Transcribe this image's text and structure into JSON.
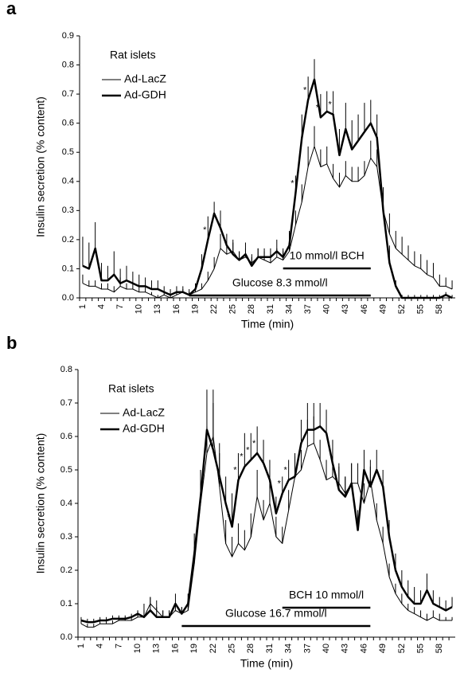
{
  "chart_data": [
    {
      "type": "line",
      "panel_label": "a",
      "subtitle": "Rat islets",
      "x_label": "Time (min)",
      "y_label": "Insulin secretion (% content)",
      "legend": "upper left",
      "categories": [
        "1",
        null,
        null,
        "4",
        null,
        null,
        "7",
        null,
        null,
        "10",
        null,
        null,
        "13",
        null,
        null,
        "16",
        null,
        null,
        "19",
        null,
        null,
        "22",
        null,
        null,
        "25",
        null,
        null,
        "28",
        null,
        null,
        "31",
        null,
        null,
        "34",
        null,
        null,
        "37",
        null,
        null,
        "40",
        null,
        null,
        "43",
        null,
        null,
        "46",
        null,
        null,
        "49",
        null,
        null,
        "52",
        null,
        null,
        "55",
        null,
        null,
        "58",
        null,
        null
      ],
      "series": [
        {
          "name": "Ad-LacZ",
          "color": "#000000",
          "line_width": 1,
          "values": [
            0.05,
            0.04,
            0.04,
            0.03,
            0.03,
            0.02,
            0.04,
            0.03,
            0.03,
            0.02,
            0.02,
            0.01,
            0.0,
            0.01,
            0.0,
            0.01,
            0.02,
            0.01,
            0.02,
            0.03,
            0.06,
            0.1,
            0.17,
            0.15,
            0.16,
            0.13,
            0.14,
            0.12,
            0.14,
            0.13,
            0.12,
            0.14,
            0.13,
            0.16,
            0.25,
            0.33,
            0.45,
            0.52,
            0.45,
            0.46,
            0.41,
            0.38,
            0.42,
            0.4,
            0.4,
            0.42,
            0.48,
            0.45,
            0.3,
            0.22,
            0.17,
            0.15,
            0.13,
            0.11,
            0.1,
            0.08,
            0.07,
            0.04,
            0.04,
            0.03
          ],
          "errors": [
            0.03,
            0.02,
            0.02,
            0.02,
            0.02,
            0.02,
            0.03,
            0.02,
            0.02,
            0.02,
            0.02,
            0.01,
            0.01,
            0.01,
            0.01,
            0.01,
            0.01,
            0.01,
            0.01,
            0.02,
            0.03,
            0.04,
            0.05,
            0.04,
            0.04,
            0.03,
            0.03,
            0.03,
            0.03,
            0.03,
            0.03,
            0.03,
            0.03,
            0.04,
            0.05,
            0.06,
            0.07,
            0.07,
            0.06,
            0.06,
            0.05,
            0.05,
            0.05,
            0.05,
            0.05,
            0.05,
            0.06,
            0.06,
            0.06,
            0.07,
            0.06,
            0.06,
            0.05,
            0.05,
            0.05,
            0.05,
            0.05,
            0.04,
            0.03,
            0.03
          ]
        },
        {
          "name": "Ad-GDH",
          "color": "#000000",
          "line_width": 2.5,
          "values": [
            0.11,
            0.1,
            0.17,
            0.06,
            0.06,
            0.08,
            0.05,
            0.06,
            0.05,
            0.04,
            0.04,
            0.03,
            0.03,
            0.02,
            0.01,
            0.02,
            0.02,
            0.01,
            0.03,
            0.1,
            0.2,
            0.29,
            0.24,
            0.18,
            0.15,
            0.13,
            0.15,
            0.11,
            0.14,
            0.14,
            0.14,
            0.16,
            0.14,
            0.18,
            0.36,
            0.55,
            0.68,
            0.75,
            0.62,
            0.64,
            0.63,
            0.49,
            0.58,
            0.51,
            0.54,
            0.57,
            0.6,
            0.55,
            0.3,
            0.12,
            0.04,
            0.0,
            0.0,
            0.0,
            0.0,
            0.0,
            0.0,
            0.0,
            0.01,
            0.0
          ],
          "errors": [
            0.1,
            0.09,
            0.09,
            0.06,
            0.05,
            0.08,
            0.05,
            0.05,
            0.04,
            0.04,
            0.03,
            0.03,
            0.03,
            0.02,
            0.02,
            0.02,
            0.02,
            0.02,
            0.02,
            0.05,
            0.08,
            0.04,
            0.06,
            0.04,
            0.04,
            0.03,
            0.04,
            0.03,
            0.03,
            0.03,
            0.03,
            0.04,
            0.03,
            0.05,
            0.06,
            0.08,
            0.08,
            0.07,
            0.08,
            0.07,
            0.08,
            0.09,
            0.09,
            0.1,
            0.09,
            0.1,
            0.08,
            0.08,
            0.08,
            0.06,
            0.02,
            0.01,
            0.01,
            0.01,
            0.01,
            0.01,
            0.01,
            0.01,
            0.01,
            0.01
          ]
        }
      ],
      "periods": [
        {
          "label": "10 mmol/l BCH",
          "start": 33,
          "end": 47,
          "level": "upper"
        },
        {
          "label": "Glucose 8.3 mmol/l",
          "start": 18,
          "end": 47,
          "level": "lower"
        }
      ],
      "annotations": [
        {
          "text": "*",
          "x": 21
        },
        {
          "text": "*",
          "x": 35
        },
        {
          "text": "*",
          "x": 37
        },
        {
          "text": "*",
          "x": 39
        },
        {
          "text": "*",
          "x": 41
        }
      ],
      "ylim": [
        0,
        0.9
      ],
      "yticks": [
        {
          "value": 0,
          "label": "0.0"
        },
        0.1,
        0.2,
        0.3,
        0.4,
        0.5,
        0.6,
        0.7,
        0.8,
        0.9
      ]
    },
    {
      "type": "line",
      "panel_label": "b",
      "subtitle": "Rat islets",
      "x_label": "Time (min)",
      "y_label": "Insulin secretion (% content)",
      "legend": "upper left",
      "categories": [
        "1",
        null,
        null,
        "4",
        null,
        null,
        "7",
        null,
        null,
        "10",
        null,
        null,
        "13",
        null,
        null,
        "16",
        null,
        null,
        "19",
        null,
        null,
        "22",
        null,
        null,
        "25",
        null,
        null,
        "28",
        null,
        null,
        "31",
        null,
        null,
        "34",
        null,
        null,
        "37",
        null,
        null,
        "40",
        null,
        null,
        "43",
        null,
        null,
        "46",
        null,
        null,
        "49",
        null,
        null,
        "52",
        null,
        null,
        "55",
        null,
        null,
        "58",
        null,
        null
      ],
      "series": [
        {
          "name": "Ad-LacZ",
          "color": "#000000",
          "line_width": 1,
          "values": [
            0.04,
            0.03,
            0.03,
            0.04,
            0.04,
            0.04,
            0.05,
            0.05,
            0.05,
            0.06,
            0.06,
            0.1,
            0.08,
            0.06,
            0.06,
            0.08,
            0.07,
            0.08,
            0.22,
            0.4,
            0.55,
            0.6,
            0.45,
            0.28,
            0.24,
            0.28,
            0.26,
            0.3,
            0.42,
            0.35,
            0.4,
            0.3,
            0.28,
            0.38,
            0.48,
            0.5,
            0.57,
            0.58,
            0.53,
            0.47,
            0.48,
            0.46,
            0.43,
            0.46,
            0.46,
            0.4,
            0.47,
            0.35,
            0.28,
            0.18,
            0.13,
            0.1,
            0.08,
            0.07,
            0.06,
            0.05,
            0.06,
            0.05,
            0.05,
            0.05
          ],
          "errors": [
            0.01,
            0.01,
            0.01,
            0.01,
            0.01,
            0.01,
            0.01,
            0.01,
            0.01,
            0.02,
            0.04,
            0.02,
            0.03,
            0.02,
            0.02,
            0.02,
            0.02,
            0.03,
            0.05,
            0.06,
            0.08,
            0.1,
            0.1,
            0.07,
            0.06,
            0.06,
            0.06,
            0.07,
            0.08,
            0.06,
            0.07,
            0.06,
            0.05,
            0.06,
            0.06,
            0.06,
            0.08,
            0.08,
            0.06,
            0.06,
            0.06,
            0.06,
            0.05,
            0.06,
            0.06,
            0.06,
            0.06,
            0.05,
            0.05,
            0.04,
            0.03,
            0.03,
            0.02,
            0.02,
            0.02,
            0.02,
            0.02,
            0.02,
            0.01,
            0.01
          ]
        },
        {
          "name": "Ad-GDH",
          "color": "#000000",
          "line_width": 2.5,
          "values": [
            0.05,
            0.045,
            0.045,
            0.05,
            0.05,
            0.055,
            0.055,
            0.055,
            0.06,
            0.07,
            0.06,
            0.08,
            0.06,
            0.06,
            0.06,
            0.1,
            0.07,
            0.1,
            0.25,
            0.42,
            0.62,
            0.56,
            0.48,
            0.4,
            0.33,
            0.47,
            0.51,
            0.53,
            0.55,
            0.52,
            0.47,
            0.37,
            0.43,
            0.47,
            0.48,
            0.58,
            0.62,
            0.62,
            0.63,
            0.61,
            0.52,
            0.44,
            0.42,
            0.46,
            0.32,
            0.5,
            0.45,
            0.5,
            0.45,
            0.3,
            0.2,
            0.15,
            0.12,
            0.1,
            0.1,
            0.14,
            0.1,
            0.09,
            0.08,
            0.09
          ],
          "errors": [
            0.01,
            0.01,
            0.01,
            0.01,
            0.01,
            0.01,
            0.01,
            0.01,
            0.01,
            0.01,
            0.02,
            0.04,
            0.03,
            0.02,
            0.02,
            0.03,
            0.02,
            0.03,
            0.06,
            0.08,
            0.12,
            0.18,
            0.1,
            0.08,
            0.1,
            0.08,
            0.1,
            0.08,
            0.08,
            0.07,
            0.06,
            0.05,
            0.05,
            0.06,
            0.07,
            0.07,
            0.08,
            0.08,
            0.07,
            0.07,
            0.07,
            0.07,
            0.06,
            0.06,
            0.06,
            0.06,
            0.06,
            0.06,
            0.05,
            0.05,
            0.05,
            0.05,
            0.05,
            0.05,
            0.04,
            0.05,
            0.04,
            0.03,
            0.03,
            0.03
          ]
        }
      ],
      "periods": [
        {
          "label": "BCH 10 mmol/l",
          "start": 33,
          "end": 47,
          "level": "upper"
        },
        {
          "label": "Glucose 16.7 mmol/l",
          "start": 17,
          "end": 47,
          "level": "lower"
        }
      ],
      "annotations": [
        {
          "text": "*",
          "x": 25
        },
        {
          "text": "*",
          "x": 26
        },
        {
          "text": "*",
          "x": 27
        },
        {
          "text": "*",
          "x": 28
        },
        {
          "text": "*",
          "x": 29
        },
        {
          "text": "*",
          "x": 33
        },
        {
          "text": "*",
          "x": 34
        }
      ],
      "ylim": [
        0,
        0.8
      ],
      "yticks": [
        {
          "value": 0,
          "label": "0.0"
        },
        0.1,
        0.2,
        0.3,
        0.4,
        0.5,
        0.6,
        0.7,
        0.8
      ]
    }
  ]
}
